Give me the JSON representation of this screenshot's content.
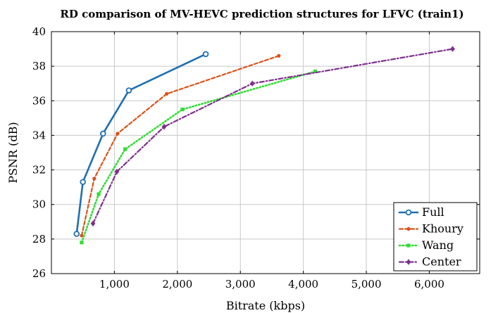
{
  "chart_data": {
    "type": "line",
    "title": "RD comparison of MV-HEVC prediction structures for LFVC (train1)",
    "xlabel": "Bitrate (kbps)",
    "ylabel": "PSNR (dB)",
    "xlim": [
      0,
      6800
    ],
    "ylim": [
      26,
      40
    ],
    "xticks": [
      1000,
      2000,
      3000,
      4000,
      5000,
      6000
    ],
    "xtick_labels": [
      "1,000",
      "2,000",
      "3,000",
      "4,000",
      "5,000",
      "6,000"
    ],
    "yticks": [
      26,
      28,
      30,
      32,
      34,
      36,
      38,
      40
    ],
    "ytick_labels": [
      "26",
      "28",
      "30",
      "32",
      "34",
      "36",
      "38",
      "40"
    ],
    "grid": true,
    "legend_position": "bottom-right",
    "series": [
      {
        "name": "Full",
        "color": "#1f6fb2",
        "line_style": "solid",
        "marker": "circle-open",
        "x": [
          400,
          500,
          820,
          1230,
          2450
        ],
        "y": [
          28.3,
          31.3,
          34.1,
          36.6,
          38.7
        ]
      },
      {
        "name": "Khoury",
        "color": "#d95319",
        "line_style": "dashed",
        "marker": "circle",
        "x": [
          480,
          680,
          1050,
          1830,
          3610
        ],
        "y": [
          28.2,
          31.5,
          34.1,
          36.4,
          38.6
        ]
      },
      {
        "name": "Wang",
        "color": "#33dd33",
        "line_style": "dotted",
        "marker": "square",
        "x": [
          480,
          750,
          1170,
          2080,
          4190
        ],
        "y": [
          27.8,
          30.6,
          33.2,
          35.5,
          37.7
        ]
      },
      {
        "name": "Center",
        "color": "#7e2f8e",
        "line_style": "dashdot",
        "marker": "diamond",
        "x": [
          660,
          1040,
          1790,
          3190,
          6370
        ],
        "y": [
          28.9,
          31.9,
          34.5,
          37.0,
          39.0
        ]
      }
    ]
  }
}
